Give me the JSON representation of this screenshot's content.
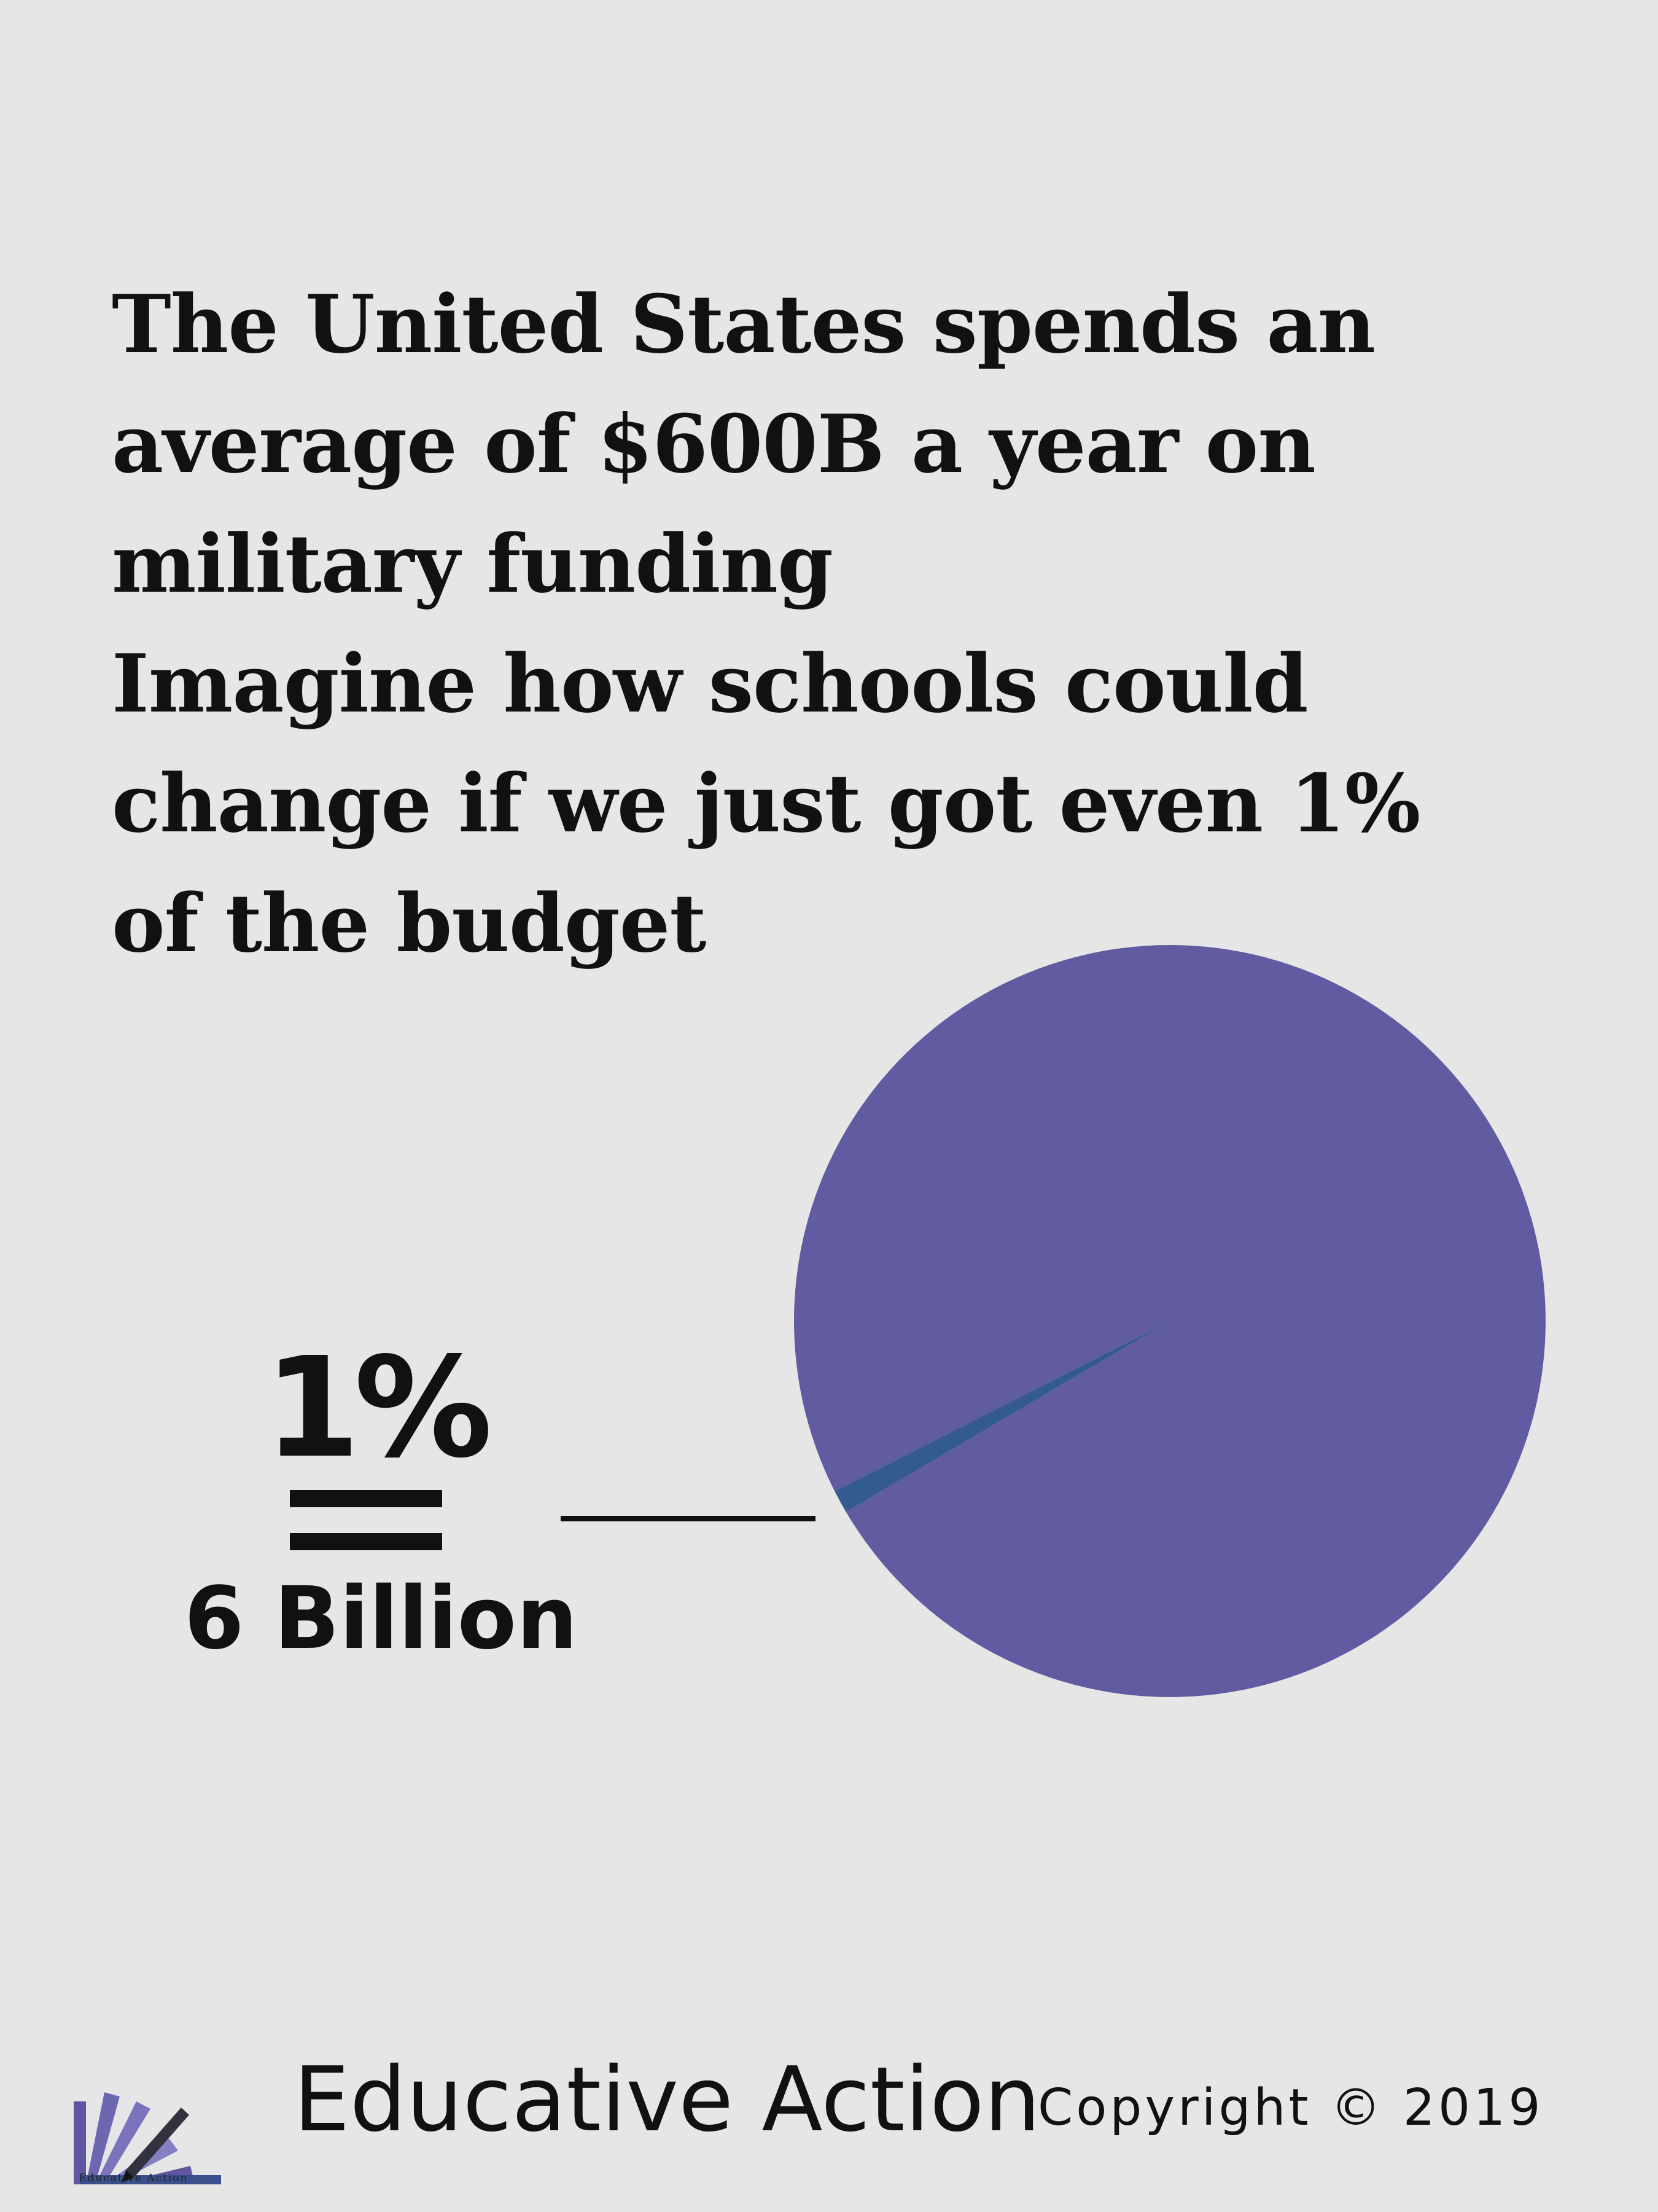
{
  "headline": {
    "lines": [
      "The United States spends an",
      "average of $600B a year on",
      "military funding",
      "Imagine how schools could",
      "change if we just got even 1%",
      "of the budget"
    ]
  },
  "chart_data": {
    "type": "pie",
    "title": "",
    "slices": [
      {
        "label": "1%",
        "value": 1,
        "color": "#335a91"
      },
      {
        "label": "",
        "value": 99,
        "color": "#615ba1"
      }
    ],
    "annotation": {
      "percent": "1%",
      "amount": "6 Billion"
    }
  },
  "footer": {
    "logo_caption": "Educative Action",
    "brand": "Educative Action",
    "copyright": "Copyright © 2019"
  },
  "colors": {
    "background": "#e6e6e6",
    "pie_main": "#615ba1",
    "pie_slice": "#335a91",
    "text": "#111111"
  }
}
